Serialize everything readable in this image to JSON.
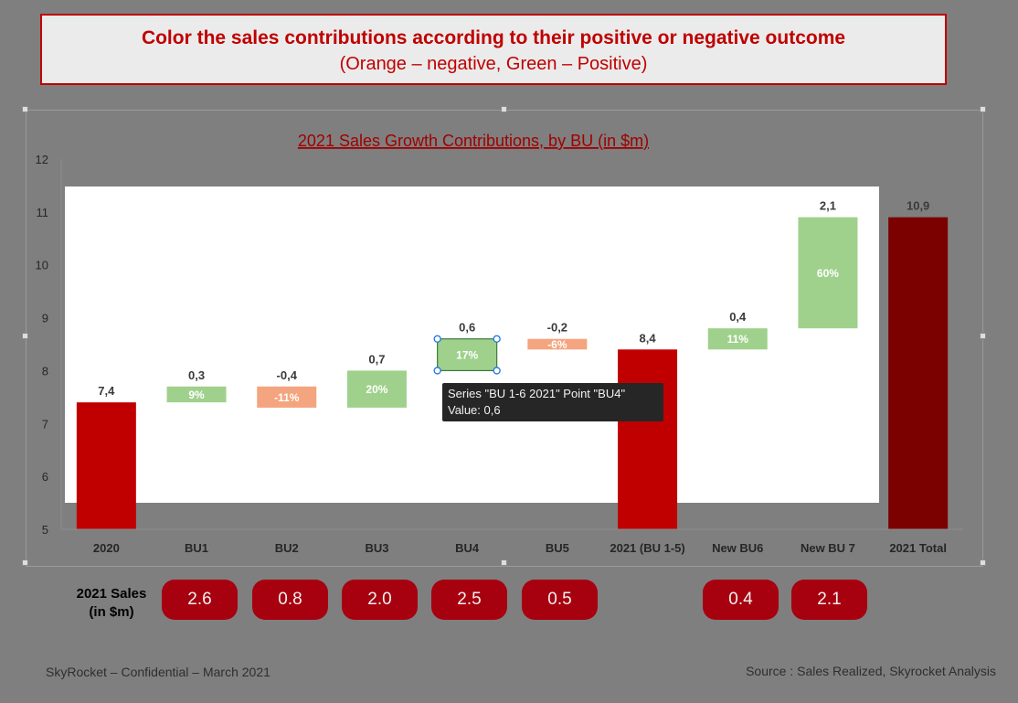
{
  "banner": {
    "title": "Color the sales contributions according to their positive or negative outcome",
    "subtitle": "(Orange – negative, Green – Positive)"
  },
  "chart_data": {
    "type": "bar",
    "title": "2021 Sales Growth Contributions, by BU (in $m)",
    "ylim": [
      5,
      12
    ],
    "yticks": [
      5,
      6,
      7,
      8,
      9,
      10,
      11,
      12
    ],
    "categories": [
      "2020",
      "BU1",
      "BU2",
      "BU3",
      "BU4",
      "BU5",
      "2021 (BU 1-5)",
      "New BU6",
      "New BU 7",
      "2021 Total"
    ],
    "bars": [
      {
        "category": "2020",
        "kind": "total",
        "start": 0,
        "end": 7.4,
        "label": "7,4",
        "pct": ""
      },
      {
        "category": "BU1",
        "kind": "positive",
        "start": 7.4,
        "end": 7.7,
        "label": "0,3",
        "pct": "9%"
      },
      {
        "category": "BU2",
        "kind": "negative",
        "start": 7.7,
        "end": 7.3,
        "label": "-0,4",
        "pct": "-11%"
      },
      {
        "category": "BU3",
        "kind": "positive",
        "start": 7.3,
        "end": 8.0,
        "label": "0,7",
        "pct": "20%"
      },
      {
        "category": "BU4",
        "kind": "positive",
        "start": 8.0,
        "end": 8.6,
        "label": "0,6",
        "pct": "17%"
      },
      {
        "category": "BU5",
        "kind": "negative",
        "start": 8.6,
        "end": 8.4,
        "label": "-0,2",
        "pct": "-6%"
      },
      {
        "category": "2021 (BU 1-5)",
        "kind": "total",
        "start": 0,
        "end": 8.4,
        "label": "8,4",
        "pct": ""
      },
      {
        "category": "New BU6",
        "kind": "positive",
        "start": 8.4,
        "end": 8.8,
        "label": "0,4",
        "pct": "11%"
      },
      {
        "category": "New BU 7",
        "kind": "positive",
        "start": 8.8,
        "end": 10.9,
        "label": "2,1",
        "pct": "60%"
      },
      {
        "category": "2021 Total",
        "kind": "grand-total",
        "start": 0,
        "end": 10.9,
        "label": "10,9",
        "pct": ""
      }
    ],
    "colors": {
      "total": "#c00000",
      "grand-total": "#7b0000",
      "positive": "#9fd18c",
      "negative": "#f4a47e",
      "plot_background": "#ffffff"
    }
  },
  "tooltip": {
    "line1": "Series \"BU 1-6 2021\" Point \"BU4\"",
    "line2": "Value: 0,6"
  },
  "sales_row": {
    "label_line1": "2021 Sales",
    "label_line2": "(in $m)",
    "values": [
      "2.6",
      "0.8",
      "2.0",
      "2.5",
      "0.5",
      "0.4",
      "2.1"
    ]
  },
  "footer": {
    "left": "SkyRocket – Confidential – March 2021",
    "right": "Source : Sales Realized, Skyrocket Analysis"
  }
}
